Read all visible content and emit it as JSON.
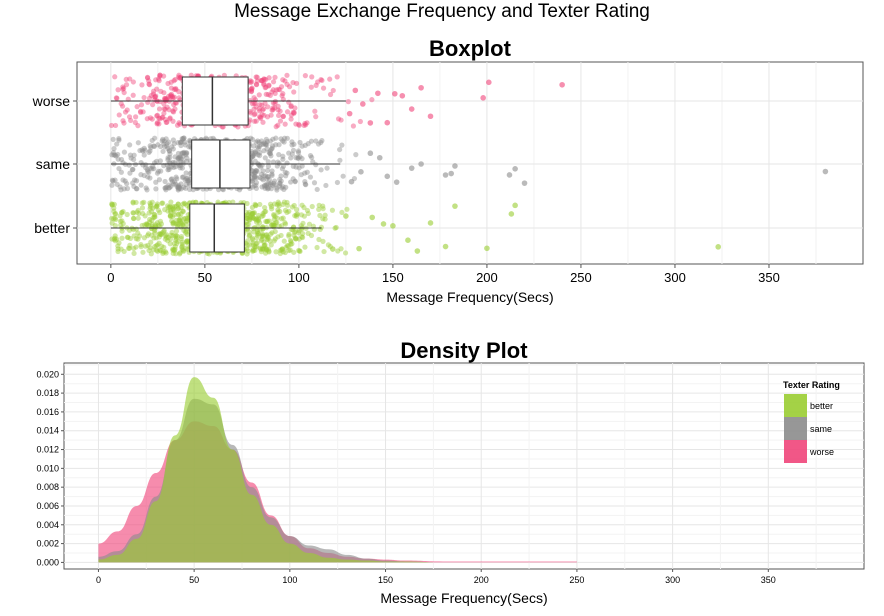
{
  "page_title": "Message Exchange Frequency and Texter Rating",
  "colors": {
    "better": "#9acd32",
    "same": "#8c8c8c",
    "worse": "#f0457a",
    "overlap": "#b19a4a"
  },
  "chart_data": [
    {
      "type": "box",
      "title": "Boxplot",
      "xlabel": "Message Frequency(Secs)",
      "ylabel": "",
      "xlim": [
        -18,
        400
      ],
      "xticks": [
        0,
        50,
        100,
        150,
        200,
        250,
        300,
        350
      ],
      "xtick_labels": [
        "0",
        "50",
        "100",
        "150",
        "200",
        "250",
        "300",
        "350"
      ],
      "categories": [
        "worse",
        "same",
        "better"
      ],
      "grid": true,
      "series": [
        {
          "name": "worse",
          "whisker_low": 0,
          "q1": 38,
          "median": 54,
          "q3": 73,
          "whisker_high": 125,
          "outliers": [
            127,
            130,
            134,
            138,
            142,
            147,
            151,
            155,
            160,
            165,
            170,
            198,
            201,
            240
          ]
        },
        {
          "name": "same",
          "whisker_low": 0,
          "q1": 43,
          "median": 58,
          "q3": 74,
          "whisker_high": 122,
          "outliers": [
            128,
            133,
            138,
            143,
            147,
            152,
            160,
            165,
            178,
            181,
            183,
            212,
            215,
            220,
            380
          ]
        },
        {
          "name": "better",
          "whisker_low": 0,
          "q1": 42,
          "median": 55,
          "q3": 71,
          "whisker_high": 112,
          "outliers": [
            118,
            125,
            132,
            139,
            145,
            150,
            158,
            163,
            170,
            178,
            183,
            200,
            213,
            215,
            323
          ]
        }
      ]
    },
    {
      "type": "area",
      "title": "Density Plot",
      "xlabel": "Message Frequency(Secs)",
      "ylabel": "",
      "xlim": [
        -18,
        400
      ],
      "ylim": [
        -0.0007,
        0.0212
      ],
      "xticks": [
        0,
        50,
        100,
        150,
        200,
        250,
        300,
        350
      ],
      "xtick_labels": [
        "0",
        "50",
        "100",
        "150",
        "200",
        "250",
        "300",
        "350"
      ],
      "yticks": [
        0,
        0.002,
        0.004,
        0.006,
        0.008,
        0.01,
        0.012,
        0.014,
        0.016,
        0.018,
        0.02
      ],
      "ytick_labels": [
        "0.000",
        "0.002",
        "0.004",
        "0.006",
        "0.008",
        "0.010",
        "0.012",
        "0.014",
        "0.016",
        "0.018",
        "0.020"
      ],
      "grid": true,
      "legend": {
        "title": "Texter Rating",
        "position": "right",
        "entries": [
          "better",
          "same",
          "worse"
        ]
      },
      "x": [
        0,
        10,
        20,
        30,
        40,
        50,
        60,
        70,
        80,
        90,
        100,
        110,
        120,
        130,
        140,
        150,
        160,
        180,
        200,
        220,
        250
      ],
      "series": [
        {
          "name": "better",
          "values": [
            0.0003,
            0.0008,
            0.0025,
            0.0065,
            0.0135,
            0.0197,
            0.0175,
            0.012,
            0.0072,
            0.004,
            0.002,
            0.001,
            0.0005,
            0.0003,
            0.0002,
            0.0001,
            0.0001,
            0.0,
            0.0,
            0.0,
            0.0
          ]
        },
        {
          "name": "same",
          "values": [
            0.0006,
            0.0012,
            0.003,
            0.007,
            0.013,
            0.0174,
            0.0168,
            0.0125,
            0.008,
            0.0048,
            0.0028,
            0.0018,
            0.0014,
            0.0008,
            0.0004,
            0.0002,
            0.0001,
            0.0,
            0.0,
            0.0,
            0.0
          ]
        },
        {
          "name": "worse",
          "values": [
            0.002,
            0.0033,
            0.006,
            0.0095,
            0.013,
            0.015,
            0.0145,
            0.012,
            0.0085,
            0.005,
            0.0028,
            0.0015,
            0.001,
            0.0006,
            0.0004,
            0.0003,
            0.0002,
            0.0001,
            0.0001,
            0.0001,
            0.0001
          ]
        }
      ]
    }
  ]
}
